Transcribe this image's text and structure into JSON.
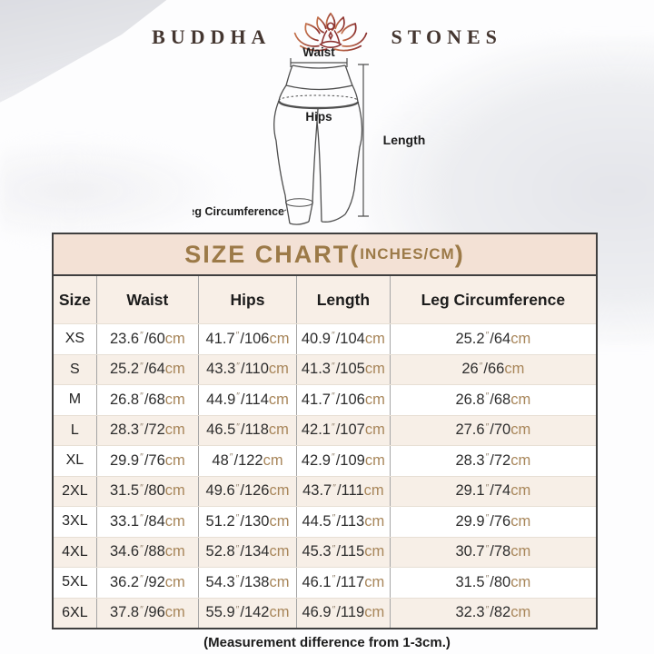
{
  "brand": {
    "word_left": "BUDDHA",
    "word_right": "STONES"
  },
  "diagram": {
    "waist_label": "Waist",
    "hips_label": "Hips",
    "length_label": "Length",
    "leg_circumference_label": "Leg Circumference"
  },
  "size_chart": {
    "title_prefix": "SIZE CHART(",
    "title_inner": "INCHES/CM",
    "title_suffix": ")",
    "headers": [
      "Size",
      "Waist",
      "Hips",
      "Length",
      "Leg Circumference"
    ],
    "inch_mark": "″",
    "slash": "/",
    "cm_label": "cm",
    "rows": [
      {
        "size": "XS",
        "measurements": [
          {
            "in": "23.6",
            "cm": "60"
          },
          {
            "in": "41.7",
            "cm": "106"
          },
          {
            "in": "40.9",
            "cm": "104"
          },
          {
            "in": "25.2",
            "cm": "64"
          }
        ]
      },
      {
        "size": "S",
        "measurements": [
          {
            "in": "25.2",
            "cm": "64"
          },
          {
            "in": "43.3",
            "cm": "110"
          },
          {
            "in": "41.3",
            "cm": "105"
          },
          {
            "in": "26",
            "cm": "66"
          }
        ]
      },
      {
        "size": "M",
        "measurements": [
          {
            "in": "26.8",
            "cm": "68"
          },
          {
            "in": "44.9",
            "cm": "114"
          },
          {
            "in": "41.7",
            "cm": "106"
          },
          {
            "in": "26.8",
            "cm": "68"
          }
        ]
      },
      {
        "size": "L",
        "measurements": [
          {
            "in": "28.3",
            "cm": "72"
          },
          {
            "in": "46.5",
            "cm": "118"
          },
          {
            "in": "42.1",
            "cm": "107"
          },
          {
            "in": "27.6",
            "cm": "70"
          }
        ]
      },
      {
        "size": "XL",
        "measurements": [
          {
            "in": "29.9",
            "cm": "76"
          },
          {
            "in": "48",
            "cm": "122"
          },
          {
            "in": "42.9",
            "cm": "109"
          },
          {
            "in": "28.3",
            "cm": "72"
          }
        ]
      },
      {
        "size": "2XL",
        "measurements": [
          {
            "in": "31.5",
            "cm": "80"
          },
          {
            "in": "49.6",
            "cm": "126"
          },
          {
            "in": "43.7",
            "cm": "111"
          },
          {
            "in": "29.1",
            "cm": "74"
          }
        ]
      },
      {
        "size": "3XL",
        "measurements": [
          {
            "in": "33.1",
            "cm": "84"
          },
          {
            "in": "51.2",
            "cm": "130"
          },
          {
            "in": "44.5",
            "cm": "113"
          },
          {
            "in": "29.9",
            "cm": "76"
          }
        ]
      },
      {
        "size": "4XL",
        "measurements": [
          {
            "in": "34.6",
            "cm": "88"
          },
          {
            "in": "52.8",
            "cm": "134"
          },
          {
            "in": "45.3",
            "cm": "115"
          },
          {
            "in": "30.7",
            "cm": "78"
          }
        ]
      },
      {
        "size": "5XL",
        "measurements": [
          {
            "in": "36.2",
            "cm": "92"
          },
          {
            "in": "54.3",
            "cm": "138"
          },
          {
            "in": "46.1",
            "cm": "117"
          },
          {
            "in": "31.5",
            "cm": "80"
          }
        ]
      },
      {
        "size": "6XL",
        "measurements": [
          {
            "in": "37.8",
            "cm": "96"
          },
          {
            "in": "55.9",
            "cm": "142"
          },
          {
            "in": "46.9",
            "cm": "119"
          },
          {
            "in": "32.3",
            "cm": "82"
          }
        ]
      }
    ]
  },
  "footnote": "(Measurement difference from 1-3cm.)",
  "colors": {
    "title_text": "#9c7a48",
    "title_bar_bg": "#f3e1d5",
    "header_row_bg": "#f8efe7",
    "alt_row_bg": "#f7efe7",
    "cm_text": "#a8865a",
    "table_border": "#3f3f3f",
    "brand_text": "#443630",
    "lotus_gradient_start": "#c4714b",
    "lotus_gradient_end": "#8c3230"
  }
}
